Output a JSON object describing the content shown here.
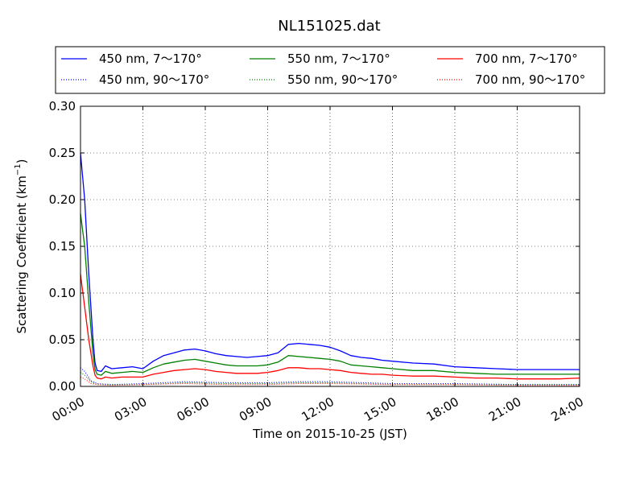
{
  "chart_data": {
    "type": "line",
    "title": "NL151025.dat",
    "xlabel": "Time on 2015-10-25 (JST)",
    "ylabel_main": "Scattering Coefficient (km",
    "ylabel_sup": "−1",
    "ylabel_end": ")",
    "xlim_hours": [
      0,
      24
    ],
    "ylim": [
      0,
      0.3
    ],
    "x_ticks": [
      "00:00",
      "03:00",
      "06:00",
      "09:00",
      "12:00",
      "15:00",
      "18:00",
      "21:00",
      "24:00"
    ],
    "y_ticks": [
      "0.00",
      "0.05",
      "0.10",
      "0.15",
      "0.20",
      "0.25",
      "0.30"
    ],
    "grid": true,
    "legend_placement": "top, outside plot, 3 columns",
    "series": [
      {
        "name": "450 nm, 7～170°",
        "color": "#0000ff",
        "style": "solid",
        "x_hours": [
          0.0,
          0.2,
          0.4,
          0.6,
          0.7,
          0.8,
          1.0,
          1.2,
          1.5,
          2.0,
          2.5,
          3.0,
          3.5,
          4.0,
          4.5,
          5.0,
          5.5,
          6.0,
          6.5,
          7.0,
          7.5,
          8.0,
          8.5,
          9.0,
          9.5,
          10.0,
          10.5,
          11.0,
          11.5,
          12.0,
          12.5,
          13.0,
          13.5,
          14.0,
          14.5,
          15.0,
          16.0,
          17.0,
          18.0,
          19.0,
          20.0,
          21.0,
          22.0,
          23.0,
          24.0
        ],
        "values": [
          0.25,
          0.2,
          0.12,
          0.05,
          0.025,
          0.017,
          0.016,
          0.022,
          0.019,
          0.02,
          0.021,
          0.019,
          0.027,
          0.033,
          0.036,
          0.039,
          0.04,
          0.038,
          0.035,
          0.033,
          0.032,
          0.031,
          0.032,
          0.033,
          0.036,
          0.045,
          0.046,
          0.045,
          0.044,
          0.042,
          0.038,
          0.033,
          0.031,
          0.03,
          0.028,
          0.027,
          0.025,
          0.024,
          0.021,
          0.02,
          0.019,
          0.018,
          0.018,
          0.018,
          0.018
        ]
      },
      {
        "name": "450 nm, 90～170°",
        "color": "#0000ff",
        "style": "dotted",
        "x_hours": [
          0.0,
          0.2,
          0.5,
          0.8,
          1.5,
          3.0,
          5.0,
          7.0,
          9.0,
          10.5,
          12.0,
          15.0,
          18.0,
          21.0,
          24.0
        ],
        "values": [
          0.02,
          0.016,
          0.006,
          0.003,
          0.002,
          0.003,
          0.005,
          0.004,
          0.004,
          0.005,
          0.005,
          0.003,
          0.003,
          0.002,
          0.002
        ]
      },
      {
        "name": "550 nm, 7～170°",
        "color": "#008000",
        "style": "solid",
        "x_hours": [
          0.0,
          0.2,
          0.4,
          0.6,
          0.7,
          0.8,
          1.0,
          1.2,
          1.5,
          2.0,
          2.5,
          3.0,
          3.5,
          4.0,
          4.5,
          5.0,
          5.5,
          6.0,
          6.5,
          7.0,
          7.5,
          8.0,
          8.5,
          9.0,
          9.5,
          10.0,
          10.5,
          11.0,
          11.5,
          12.0,
          12.5,
          13.0,
          13.5,
          14.0,
          14.5,
          15.0,
          16.0,
          17.0,
          18.0,
          19.0,
          20.0,
          21.0,
          22.0,
          23.0,
          24.0
        ],
        "values": [
          0.185,
          0.15,
          0.09,
          0.035,
          0.018,
          0.013,
          0.012,
          0.016,
          0.014,
          0.015,
          0.016,
          0.015,
          0.02,
          0.024,
          0.026,
          0.028,
          0.029,
          0.027,
          0.025,
          0.023,
          0.022,
          0.022,
          0.022,
          0.023,
          0.026,
          0.033,
          0.032,
          0.031,
          0.03,
          0.029,
          0.027,
          0.023,
          0.022,
          0.021,
          0.02,
          0.019,
          0.017,
          0.017,
          0.015,
          0.014,
          0.013,
          0.013,
          0.013,
          0.013,
          0.013
        ]
      },
      {
        "name": "550 nm, 90～170°",
        "color": "#008000",
        "style": "dotted",
        "x_hours": [
          0.0,
          0.2,
          0.5,
          0.8,
          1.5,
          3.0,
          5.0,
          7.0,
          9.0,
          10.5,
          12.0,
          15.0,
          18.0,
          21.0,
          24.0
        ],
        "values": [
          0.015,
          0.012,
          0.005,
          0.002,
          0.002,
          0.002,
          0.004,
          0.003,
          0.003,
          0.004,
          0.004,
          0.002,
          0.002,
          0.002,
          0.002
        ]
      },
      {
        "name": "700 nm, 7～170°",
        "color": "#ff0000",
        "style": "solid",
        "x_hours": [
          0.0,
          0.2,
          0.4,
          0.6,
          0.7,
          0.8,
          1.0,
          1.2,
          1.5,
          2.0,
          2.5,
          3.0,
          3.5,
          4.0,
          4.5,
          5.0,
          5.5,
          6.0,
          6.5,
          7.0,
          7.5,
          8.0,
          8.5,
          9.0,
          9.5,
          10.0,
          10.5,
          11.0,
          11.5,
          12.0,
          12.5,
          13.0,
          13.5,
          14.0,
          14.5,
          15.0,
          16.0,
          17.0,
          18.0,
          19.0,
          20.0,
          21.0,
          22.0,
          23.0,
          24.0
        ],
        "values": [
          0.12,
          0.085,
          0.05,
          0.022,
          0.012,
          0.009,
          0.008,
          0.01,
          0.009,
          0.01,
          0.01,
          0.01,
          0.013,
          0.015,
          0.017,
          0.018,
          0.019,
          0.018,
          0.016,
          0.015,
          0.014,
          0.014,
          0.014,
          0.015,
          0.017,
          0.02,
          0.02,
          0.019,
          0.019,
          0.018,
          0.017,
          0.015,
          0.014,
          0.013,
          0.013,
          0.012,
          0.011,
          0.011,
          0.01,
          0.009,
          0.009,
          0.008,
          0.008,
          0.008,
          0.009
        ]
      },
      {
        "name": "700 nm, 90～170°",
        "color": "#ff0000",
        "style": "dotted",
        "x_hours": [
          0.0,
          0.2,
          0.5,
          0.8,
          1.5,
          3.0,
          5.0,
          7.0,
          9.0,
          10.5,
          12.0,
          15.0,
          18.0,
          21.0,
          24.0
        ],
        "values": [
          0.01,
          0.008,
          0.003,
          0.002,
          0.001,
          0.002,
          0.003,
          0.002,
          0.002,
          0.003,
          0.003,
          0.002,
          0.002,
          0.001,
          0.001
        ]
      }
    ]
  }
}
